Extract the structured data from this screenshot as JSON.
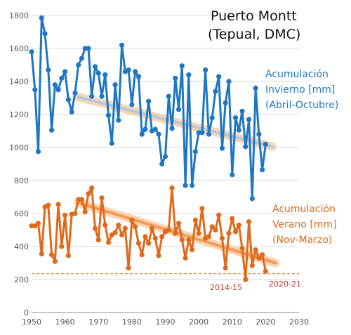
{
  "chart_data": {
    "type": "line",
    "title": "Puerto Montt",
    "subtitle": "(Tepual, DMC)",
    "xlim": [
      1950,
      2030
    ],
    "ylim": [
      0,
      1800
    ],
    "x_ticks": [
      1950,
      1960,
      1970,
      1980,
      1990,
      2000,
      2010,
      2020,
      2030
    ],
    "y_ticks": [
      0,
      200,
      400,
      600,
      800,
      1000,
      1200,
      1400,
      1600,
      1800
    ],
    "grid": "horizontal",
    "series": [
      {
        "name": "Acumulación Invierno [mm] (Abril-Octubre)",
        "label_lines": [
          "Acumulación",
          "Invierno [mm]",
          "(Abril-Octubre)"
        ],
        "color": "#1f77c4",
        "trend": [
          1964,
          1305,
          2022,
          1005
        ],
        "x": [
          1950,
          1951,
          1952,
          1953,
          1954,
          1955,
          1956,
          1957,
          1958,
          1959,
          1960,
          1961,
          1962,
          1963,
          1964,
          1965,
          1966,
          1967,
          1968,
          1969,
          1970,
          1971,
          1972,
          1973,
          1974,
          1975,
          1976,
          1977,
          1978,
          1979,
          1980,
          1981,
          1982,
          1983,
          1984,
          1985,
          1986,
          1987,
          1988,
          1989,
          1990,
          1991,
          1992,
          1993,
          1994,
          1995,
          1996,
          1997,
          1998,
          1999,
          2000,
          2001,
          2002,
          2003,
          2004,
          2005,
          2006,
          2007,
          2008,
          2009,
          2010,
          2011,
          2012,
          2013,
          2014,
          2015,
          2016,
          2017,
          2018,
          2019,
          2020
        ],
        "values": [
          1580,
          1350,
          975,
          1785,
          1690,
          1470,
          1105,
          1380,
          1350,
          1420,
          1460,
          1290,
          1215,
          1330,
          1500,
          1540,
          1600,
          1600,
          1310,
          1490,
          1450,
          1310,
          1440,
          1195,
          1025,
          1380,
          1165,
          1620,
          1460,
          1470,
          1260,
          1460,
          1430,
          1080,
          1110,
          1280,
          1100,
          1110,
          1080,
          900,
          945,
          1310,
          1115,
          1420,
          1230,
          1495,
          770,
          1440,
          770,
          975,
          1090,
          1090,
          1470,
          1080,
          1180,
          1340,
          1430,
          995,
          1270,
          1400,
          835,
          1180,
          1105,
          1220,
          1005,
          1170,
          690,
          1360,
          1080,
          865,
          1020
        ]
      },
      {
        "name": "Acumulación Verano [mm] (Nov-Marzo)",
        "label_lines": [
          "Acumulación",
          "Verano [mm]",
          "(Nov-Marzo)"
        ],
        "color": "#e06a1b",
        "trend": [
          1964,
          665,
          2023,
          300
        ],
        "x": [
          1950,
          1951,
          1952,
          1953,
          1954,
          1955,
          1956,
          1957,
          1958,
          1959,
          1960,
          1961,
          1962,
          1963,
          1964,
          1965,
          1966,
          1967,
          1968,
          1969,
          1970,
          1971,
          1972,
          1973,
          1974,
          1975,
          1976,
          1977,
          1978,
          1979,
          1980,
          1981,
          1982,
          1983,
          1984,
          1985,
          1986,
          1987,
          1988,
          1989,
          1990,
          1991,
          1992,
          1993,
          1994,
          1995,
          1996,
          1997,
          1998,
          1999,
          2000,
          2001,
          2002,
          2003,
          2004,
          2005,
          2006,
          2007,
          2008,
          2009,
          2010,
          2011,
          2012,
          2013,
          2014,
          2015,
          2016,
          2017,
          2018,
          2019,
          2020
        ],
        "values": [
          525,
          525,
          540,
          355,
          640,
          650,
          350,
          310,
          655,
          400,
          590,
          345,
          595,
          600,
          685,
          685,
          610,
          720,
          755,
          510,
          440,
          695,
          530,
          425,
          470,
          485,
          530,
          470,
          510,
          270,
          560,
          520,
          420,
          350,
          460,
          420,
          510,
          450,
          345,
          460,
          490,
          500,
          755,
          480,
          540,
          440,
          330,
          440,
          380,
          560,
          480,
          630,
          450,
          460,
          520,
          500,
          590,
          450,
          270,
          480,
          570,
          490,
          530,
          390,
          200,
          550,
          285,
          380,
          330,
          350,
          250
        ]
      }
    ],
    "reference_line": {
      "y": 235,
      "color": "#e06a1b",
      "style": "dashed"
    },
    "annotations": [
      {
        "text": "2014-15",
        "x": 2014,
        "y": 200
      },
      {
        "text": "2020-21",
        "x": 2020,
        "y": 250
      }
    ]
  }
}
